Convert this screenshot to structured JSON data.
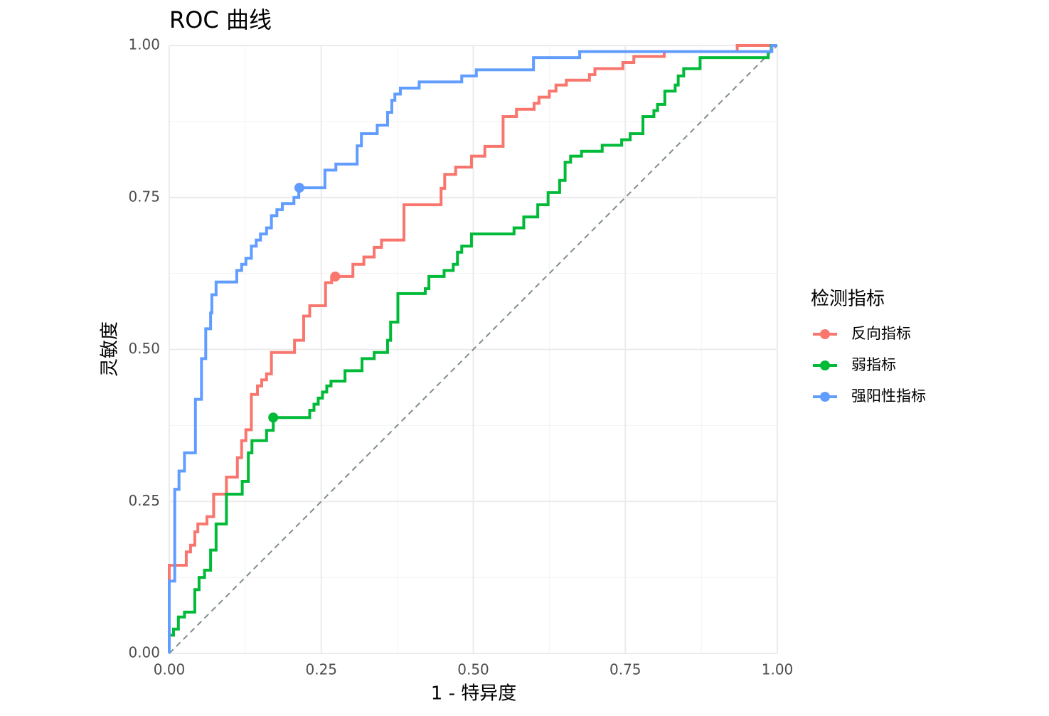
{
  "chart_data": {
    "type": "line",
    "title": "ROC 曲线",
    "x_label": "1 - 特异度",
    "y_label": "灵敏度",
    "xlim": [
      0,
      1
    ],
    "ylim": [
      0,
      1
    ],
    "xticks": [
      {
        "value": 0,
        "label": "0.00"
      },
      {
        "value": 0.25,
        "label": "0.25"
      },
      {
        "value": 0.5,
        "label": "0.50"
      },
      {
        "value": 0.75,
        "label": "0.75"
      },
      {
        "value": 1,
        "label": "1.00"
      }
    ],
    "yticks": [
      {
        "value": 0,
        "label": "0.00"
      },
      {
        "value": 0.25,
        "label": "0.25"
      },
      {
        "value": 0.5,
        "label": "0.50"
      },
      {
        "value": 0.75,
        "label": "0.75"
      },
      {
        "value": 1,
        "label": "1.00"
      }
    ],
    "xminor": [
      0.125,
      0.375,
      0.625,
      0.875
    ],
    "yminor": [
      0.125,
      0.375,
      0.625,
      0.875
    ],
    "grid": true,
    "reference_line": true,
    "reference_color": "#7f8c8d",
    "legend_title": "检测指标",
    "legend_position": "right",
    "series": [
      {
        "name": "反向指标",
        "color": "#F8766D",
        "best_x": 0.273,
        "best_y": 0.62,
        "x": [
          0,
          0,
          0.028,
          0.028,
          0.035,
          0.035,
          0.042,
          0.042,
          0.047,
          0.047,
          0.062,
          0.062,
          0.073,
          0.073,
          0.094,
          0.094,
          0.112,
          0.112,
          0.119,
          0.119,
          0.126,
          0.126,
          0.135,
          0.135,
          0.145,
          0.145,
          0.152,
          0.152,
          0.16,
          0.16,
          0.168,
          0.168,
          0.206,
          0.206,
          0.221,
          0.221,
          0.231,
          0.231,
          0.257,
          0.257,
          0.267,
          0.267,
          0.302,
          0.302,
          0.32,
          0.32,
          0.337,
          0.337,
          0.349,
          0.349,
          0.386,
          0.386,
          0.447,
          0.447,
          0.453,
          0.453,
          0.471,
          0.471,
          0.497,
          0.497,
          0.519,
          0.519,
          0.549,
          0.549,
          0.571,
          0.571,
          0.6,
          0.6,
          0.608,
          0.608,
          0.625,
          0.625,
          0.636,
          0.636,
          0.653,
          0.653,
          0.691,
          0.691,
          0.7,
          0.7,
          0.746,
          0.746,
          0.764,
          0.764,
          0.814,
          0.814,
          0.934,
          0.934,
          1
        ],
        "values": [
          0,
          0.145,
          0.145,
          0.167,
          0.167,
          0.178,
          0.178,
          0.2,
          0.2,
          0.213,
          0.213,
          0.225,
          0.225,
          0.262,
          0.262,
          0.29,
          0.29,
          0.322,
          0.322,
          0.35,
          0.35,
          0.368,
          0.368,
          0.426,
          0.426,
          0.44,
          0.44,
          0.45,
          0.45,
          0.46,
          0.46,
          0.495,
          0.495,
          0.515,
          0.515,
          0.555,
          0.555,
          0.572,
          0.572,
          0.61,
          0.61,
          0.62,
          0.62,
          0.64,
          0.64,
          0.652,
          0.652,
          0.668,
          0.668,
          0.68,
          0.68,
          0.738,
          0.738,
          0.765,
          0.765,
          0.788,
          0.788,
          0.8,
          0.8,
          0.818,
          0.818,
          0.834,
          0.834,
          0.883,
          0.883,
          0.895,
          0.895,
          0.905,
          0.905,
          0.915,
          0.915,
          0.925,
          0.925,
          0.935,
          0.935,
          0.943,
          0.943,
          0.952,
          0.952,
          0.962,
          0.962,
          0.972,
          0.972,
          0.982,
          0.982,
          0.99,
          0.99,
          1,
          1
        ]
      },
      {
        "name": "弱指标",
        "color": "#00BA38",
        "best_x": 0.171,
        "best_y": 0.388,
        "x": [
          0,
          0,
          0.007,
          0.007,
          0.015,
          0.015,
          0.025,
          0.025,
          0.042,
          0.042,
          0.049,
          0.049,
          0.058,
          0.058,
          0.068,
          0.068,
          0.077,
          0.077,
          0.094,
          0.094,
          0.12,
          0.12,
          0.13,
          0.13,
          0.136,
          0.136,
          0.16,
          0.16,
          0.171,
          0.171,
          0.231,
          0.231,
          0.238,
          0.238,
          0.245,
          0.245,
          0.252,
          0.252,
          0.259,
          0.259,
          0.266,
          0.266,
          0.289,
          0.289,
          0.317,
          0.317,
          0.337,
          0.337,
          0.359,
          0.359,
          0.364,
          0.364,
          0.376,
          0.376,
          0.421,
          0.421,
          0.427,
          0.427,
          0.452,
          0.452,
          0.467,
          0.467,
          0.474,
          0.474,
          0.481,
          0.481,
          0.497,
          0.497,
          0.567,
          0.567,
          0.583,
          0.583,
          0.606,
          0.606,
          0.623,
          0.623,
          0.642,
          0.642,
          0.651,
          0.651,
          0.66,
          0.66,
          0.678,
          0.678,
          0.712,
          0.712,
          0.744,
          0.744,
          0.758,
          0.758,
          0.779,
          0.779,
          0.797,
          0.797,
          0.803,
          0.803,
          0.815,
          0.815,
          0.832,
          0.832,
          0.837,
          0.837,
          0.846,
          0.846,
          0.873,
          0.873,
          0.985,
          0.985,
          0.99,
          0.99,
          1
        ],
        "values": [
          0,
          0.03,
          0.03,
          0.04,
          0.04,
          0.06,
          0.06,
          0.068,
          0.068,
          0.105,
          0.105,
          0.125,
          0.125,
          0.137,
          0.137,
          0.17,
          0.17,
          0.213,
          0.213,
          0.262,
          0.262,
          0.283,
          0.283,
          0.33,
          0.33,
          0.35,
          0.35,
          0.367,
          0.367,
          0.388,
          0.388,
          0.4,
          0.4,
          0.41,
          0.41,
          0.42,
          0.42,
          0.43,
          0.43,
          0.44,
          0.44,
          0.448,
          0.448,
          0.465,
          0.465,
          0.485,
          0.485,
          0.495,
          0.495,
          0.515,
          0.515,
          0.545,
          0.545,
          0.592,
          0.592,
          0.6,
          0.6,
          0.62,
          0.62,
          0.63,
          0.63,
          0.64,
          0.64,
          0.66,
          0.66,
          0.67,
          0.67,
          0.69,
          0.69,
          0.7,
          0.7,
          0.718,
          0.718,
          0.738,
          0.738,
          0.758,
          0.758,
          0.778,
          0.778,
          0.808,
          0.808,
          0.818,
          0.818,
          0.826,
          0.826,
          0.836,
          0.836,
          0.845,
          0.845,
          0.855,
          0.855,
          0.883,
          0.883,
          0.893,
          0.893,
          0.903,
          0.903,
          0.925,
          0.925,
          0.935,
          0.935,
          0.95,
          0.95,
          0.962,
          0.962,
          0.98,
          0.98,
          0.99,
          0.99,
          1,
          1
        ]
      },
      {
        "name": "强阳性指标",
        "color": "#619CFF",
        "best_x": 0.214,
        "best_y": 0.766,
        "x": [
          0,
          0,
          0.009,
          0.009,
          0.016,
          0.016,
          0.025,
          0.025,
          0.043,
          0.043,
          0.053,
          0.053,
          0.06,
          0.06,
          0.068,
          0.068,
          0.07,
          0.07,
          0.077,
          0.077,
          0.111,
          0.111,
          0.119,
          0.119,
          0.126,
          0.126,
          0.135,
          0.135,
          0.143,
          0.143,
          0.15,
          0.15,
          0.16,
          0.16,
          0.168,
          0.168,
          0.177,
          0.177,
          0.186,
          0.186,
          0.205,
          0.205,
          0.213,
          0.213,
          0.256,
          0.256,
          0.274,
          0.274,
          0.309,
          0.309,
          0.316,
          0.316,
          0.342,
          0.342,
          0.359,
          0.359,
          0.366,
          0.366,
          0.371,
          0.371,
          0.38,
          0.38,
          0.411,
          0.411,
          0.481,
          0.481,
          0.505,
          0.505,
          0.599,
          0.599,
          0.675,
          0.675,
          0.991,
          0.991,
          1
        ],
        "values": [
          0,
          0.119,
          0.119,
          0.27,
          0.27,
          0.3,
          0.3,
          0.33,
          0.33,
          0.418,
          0.418,
          0.485,
          0.485,
          0.534,
          0.534,
          0.56,
          0.56,
          0.59,
          0.59,
          0.611,
          0.611,
          0.63,
          0.63,
          0.64,
          0.64,
          0.65,
          0.65,
          0.67,
          0.67,
          0.68,
          0.68,
          0.69,
          0.69,
          0.7,
          0.7,
          0.72,
          0.72,
          0.73,
          0.73,
          0.74,
          0.74,
          0.75,
          0.75,
          0.766,
          0.766,
          0.795,
          0.795,
          0.805,
          0.805,
          0.835,
          0.835,
          0.855,
          0.855,
          0.869,
          0.869,
          0.89,
          0.89,
          0.91,
          0.91,
          0.92,
          0.92,
          0.93,
          0.93,
          0.94,
          0.94,
          0.95,
          0.95,
          0.96,
          0.96,
          0.98,
          0.98,
          0.99,
          0.99,
          1,
          1
        ]
      }
    ]
  }
}
